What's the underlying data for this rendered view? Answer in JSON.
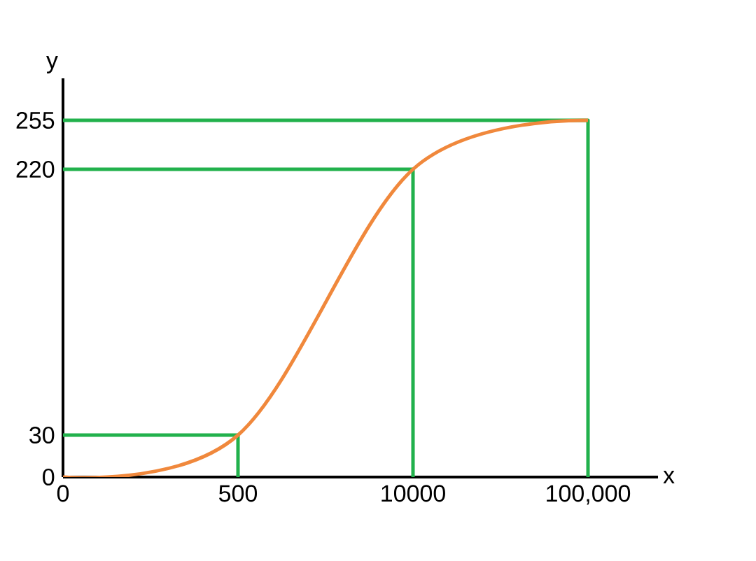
{
  "chart_data": {
    "type": "line",
    "xlabel": "x",
    "ylabel": "y",
    "categories": [
      "0",
      "500",
      "10000",
      "100,000"
    ],
    "ylim": [
      0,
      285
    ],
    "yticks": [
      0,
      30,
      220,
      255
    ],
    "grid": false,
    "marker": "none",
    "line_style": "solid",
    "series": [
      {
        "color": "#f0883c",
        "values": [
          0,
          30,
          220,
          255
        ]
      },
      {
        "type": "line",
        "color": "#22b14c",
        "x": [
          "0",
          "500",
          "500"
        ],
        "values": [
          30,
          30,
          0
        ]
      },
      {
        "type": "line",
        "color": "#22b14c",
        "x": [
          "0",
          "10000",
          "10000"
        ],
        "values": [
          220,
          220,
          0
        ]
      },
      {
        "type": "line",
        "color": "#22b14c",
        "x": [
          "0",
          "100,000",
          "100,000"
        ],
        "values": [
          255,
          255,
          0
        ]
      }
    ]
  }
}
